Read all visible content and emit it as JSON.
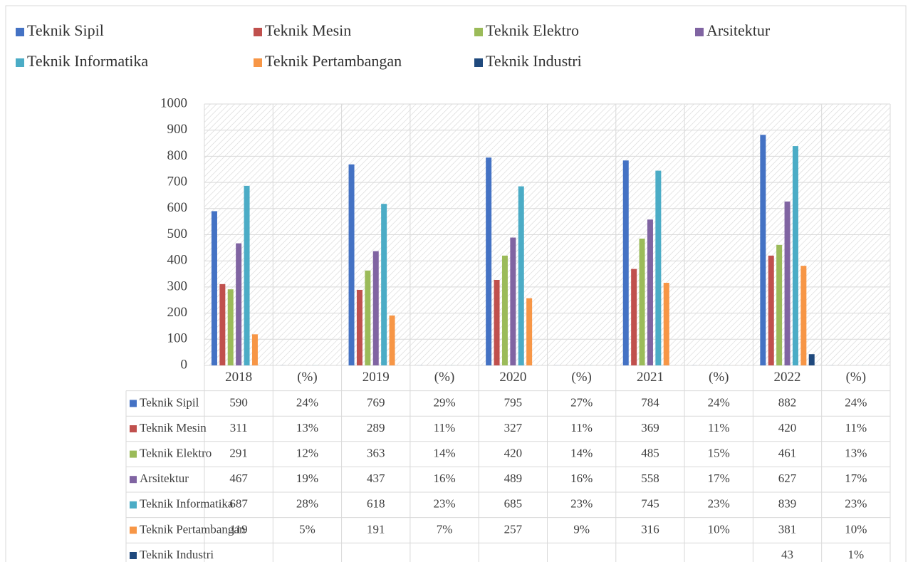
{
  "chart_data": {
    "type": "bar",
    "categories": [
      "2018",
      "(%)",
      "2019",
      "(%)",
      "2020",
      "(%)",
      "2021",
      "(%)",
      "2022",
      "(%)"
    ],
    "series": [
      {
        "name": "Teknik Sipil",
        "color": "#4472c4",
        "values": [
          590,
          0.24,
          769,
          0.29,
          795,
          0.27,
          784,
          0.24,
          882,
          0.24
        ],
        "value_labels": [
          "590",
          "24%",
          "769",
          "29%",
          "795",
          "27%",
          "784",
          "24%",
          "882",
          "24%"
        ]
      },
      {
        "name": "Teknik Mesin",
        "color": "#c0504d",
        "values": [
          311,
          0.13,
          289,
          0.11,
          327,
          0.11,
          369,
          0.11,
          420,
          0.11
        ],
        "value_labels": [
          "311",
          "13%",
          "289",
          "11%",
          "327",
          "11%",
          "369",
          "11%",
          "420",
          "11%"
        ]
      },
      {
        "name": "Teknik Elektro",
        "color": "#9bbb59",
        "values": [
          291,
          0.12,
          363,
          0.14,
          420,
          0.14,
          485,
          0.15,
          461,
          0.13
        ],
        "value_labels": [
          "291",
          "12%",
          "363",
          "14%",
          "420",
          "14%",
          "485",
          "15%",
          "461",
          "13%"
        ]
      },
      {
        "name": "Arsitektur",
        "color": "#8064a2",
        "values": [
          467,
          0.19,
          437,
          0.16,
          489,
          0.16,
          558,
          0.17,
          627,
          0.17
        ],
        "value_labels": [
          "467",
          "19%",
          "437",
          "16%",
          "489",
          "16%",
          "558",
          "17%",
          "627",
          "17%"
        ]
      },
      {
        "name": "Teknik Informatika",
        "color": "#4bacc6",
        "values": [
          687,
          0.28,
          618,
          0.23,
          685,
          0.23,
          745,
          0.23,
          839,
          0.23
        ],
        "value_labels": [
          "687",
          "28%",
          "618",
          "23%",
          "685",
          "23%",
          "745",
          "23%",
          "839",
          "23%"
        ]
      },
      {
        "name": "Teknik Pertambangan",
        "color": "#f79646",
        "values": [
          119,
          0.05,
          191,
          0.07,
          257,
          0.09,
          316,
          0.1,
          381,
          0.1
        ],
        "value_labels": [
          "119",
          "5%",
          "191",
          "7%",
          "257",
          "9%",
          "316",
          "10%",
          "381",
          "10%"
        ]
      },
      {
        "name": "Teknik Industri",
        "color": "#1f497d",
        "values": [
          null,
          null,
          null,
          null,
          null,
          null,
          null,
          null,
          43,
          0.01
        ],
        "value_labels": [
          null,
          null,
          null,
          null,
          null,
          null,
          null,
          null,
          "43",
          "1%"
        ]
      }
    ],
    "ylim": [
      0,
      1000
    ],
    "yticks": [
      0,
      100,
      200,
      300,
      400,
      500,
      600,
      700,
      800,
      900,
      1000
    ],
    "grid": true,
    "legend": "top"
  }
}
